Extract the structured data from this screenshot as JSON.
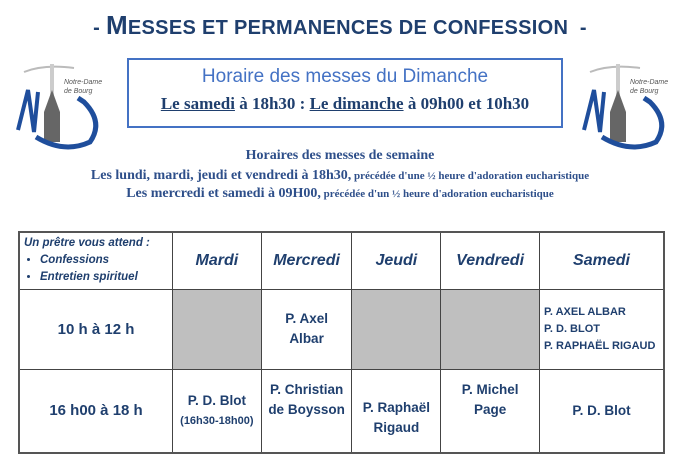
{
  "header": {
    "title_dash_left": "-",
    "title_first_letter": "M",
    "title_rest": "ESSES ET PERMANENCES DE CONFESSION",
    "title_dash_right": "-"
  },
  "logo": {
    "text_line1": "Notre-Dame",
    "text_line2": "de Bourg",
    "brand_color": "#1f4e9c"
  },
  "sunday": {
    "heading": "Horaire des messes du Dimanche",
    "sat_label": "Le samedi",
    "sat_time": " à 18h30 : ",
    "sun_label": "Le dimanche",
    "sun_time": " à 09h00 et 10h30"
  },
  "weekday": {
    "heading": "Horaires des messes de semaine",
    "line1_main": "Les lundi, mardi, jeudi et vendredi à 18h30,",
    "line1_note": " précédée d'une ½ heure d'adoration eucharistique",
    "line2_main": "Les mercredi et samedi à 09H00,",
    "line2_note": " précédée d'un ½ heure d'adoration eucharistique"
  },
  "table": {
    "intro": "Un prêtre vous attend :",
    "bullets": [
      "Confessions",
      "Entretien spirituel"
    ],
    "days": [
      "Mardi",
      "Mercredi",
      "Jeudi",
      "Vendredi",
      "Samedi"
    ],
    "rows": [
      {
        "slot": "10 h à 12 h",
        "mardi": "",
        "mercredi": [
          "P. Axel",
          "Albar"
        ],
        "jeudi": "",
        "vendredi": "",
        "samedi": [
          "P. AXEL ALBAR",
          "P. D. BLOT",
          "P. RAPHAËL RIGAUD"
        ]
      },
      {
        "slot": "16 h00 à 18 h",
        "mardi": [
          "P. D. Blot",
          "(16h30-18h00)"
        ],
        "mercredi": [
          "P. Christian",
          "de Boysson"
        ],
        "jeudi": [
          "P. Raphaël",
          "Rigaud"
        ],
        "vendredi": [
          "P. Michel",
          "Page"
        ],
        "samedi": [
          "P. D. Blot"
        ]
      }
    ]
  }
}
